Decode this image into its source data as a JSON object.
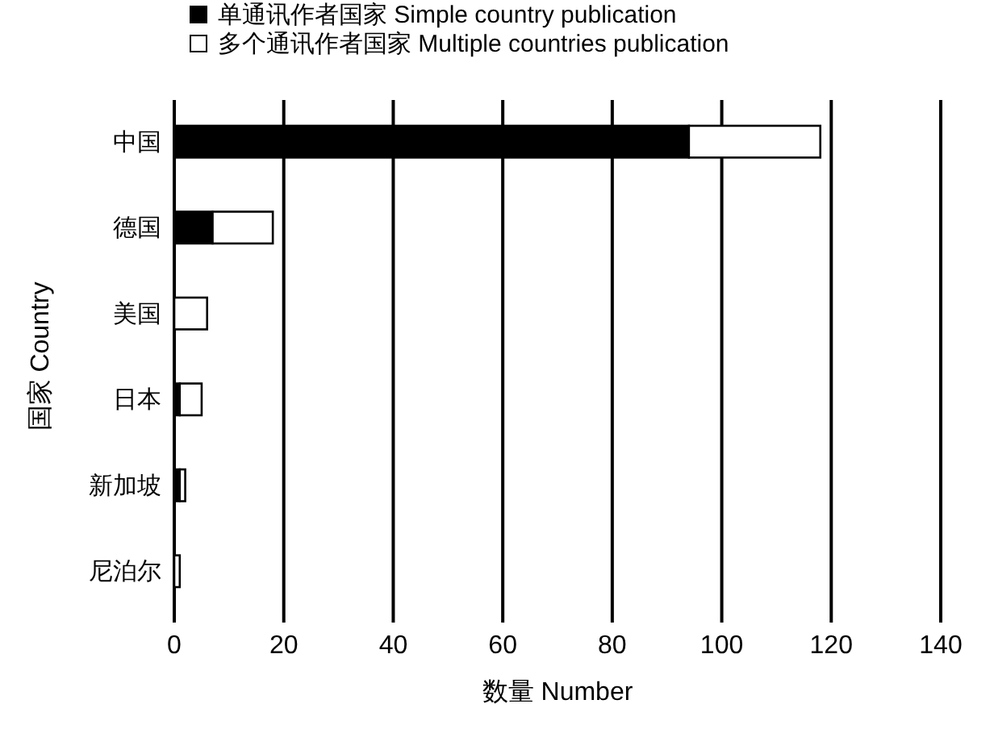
{
  "chart_data": {
    "type": "bar",
    "orientation": "horizontal",
    "stacked": true,
    "xlabel": "数量  Number",
    "ylabel": "国家  Country",
    "categories": [
      "中国",
      "德国",
      "美国",
      "日本",
      "新加坡",
      "尼泊尔"
    ],
    "series": [
      {
        "name": "单通讯作者国家  Simple country publication",
        "color": "#000000",
        "values": [
          94,
          7,
          0,
          1,
          1,
          0
        ]
      },
      {
        "name": "多个通讯作者国家  Multiple countries publication",
        "color": "#ffffff",
        "values": [
          24,
          11,
          6,
          4,
          1,
          1
        ]
      }
    ],
    "xlim": [
      0,
      140
    ],
    "xticks": [
      0,
      20,
      40,
      60,
      80,
      100,
      120,
      140
    ],
    "grid": "x",
    "legend": "top"
  }
}
